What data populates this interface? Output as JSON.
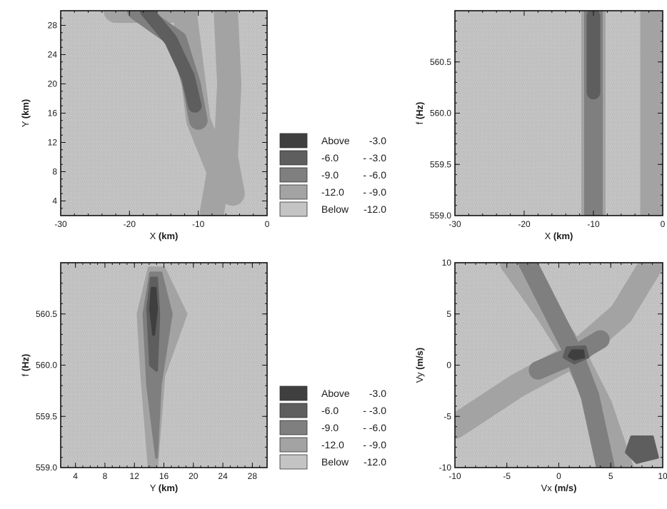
{
  "chart_data": [
    {
      "id": "panel-xy",
      "type": "heatmap",
      "xlabel": "X",
      "xunit": "(km)",
      "ylabel": "Y",
      "yunit": "(km)",
      "xlim": [
        -30,
        0
      ],
      "ylim": [
        2,
        30
      ],
      "xticks": [
        -30,
        -20,
        -10,
        0
      ],
      "xtick_labels": [
        "-30",
        "-20",
        "-10",
        "0"
      ],
      "yticks": [
        4,
        8,
        12,
        16,
        20,
        24,
        28
      ],
      "ytick_labels": [
        "4",
        "8",
        "12",
        "16",
        "20",
        "24",
        "28"
      ],
      "x_minor_step": 2,
      "y_minor_step": 1,
      "features": [
        {
          "kind": "band",
          "level": 3,
          "points": [
            [
              -22,
              30
            ],
            [
              -12,
              30
            ],
            [
              -10,
              15
            ],
            [
              -7,
              8
            ],
            [
              -8,
              2.5
            ]
          ]
        },
        {
          "kind": "band",
          "level": 2,
          "points": [
            [
              -19,
              30
            ],
            [
              -13,
              26
            ],
            [
              -11,
              20
            ],
            [
              -10,
              15
            ]
          ]
        },
        {
          "kind": "band",
          "level": 1,
          "points": [
            [
              -17.5,
              30
            ],
            [
              -14,
              26
            ],
            [
              -11.5,
              21
            ],
            [
              -10.5,
              17
            ]
          ]
        },
        {
          "kind": "band",
          "level": 3,
          "points": [
            [
              -6,
              30
            ],
            [
              -5.5,
              20
            ],
            [
              -6,
              10
            ],
            [
              -5,
              5
            ]
          ]
        }
      ]
    },
    {
      "id": "panel-xf",
      "type": "heatmap",
      "xlabel": "X",
      "xunit": "(km)",
      "ylabel": "f",
      "yunit": "(Hz)",
      "xlim": [
        -30,
        0
      ],
      "ylim": [
        559.0,
        561.0
      ],
      "xticks": [
        -30,
        -20,
        -10,
        0
      ],
      "xtick_labels": [
        "-30",
        "-20",
        "-10",
        "0"
      ],
      "yticks": [
        559.0,
        559.5,
        560.0,
        560.5
      ],
      "ytick_labels": [
        "559.0",
        "559.5",
        "560.0",
        "560.5"
      ],
      "x_minor_step": 2,
      "y_minor_step": 0.1,
      "features": [
        {
          "kind": "band",
          "level": 3,
          "points": [
            [
              -10,
              561
            ],
            [
              -10,
              559
            ]
          ]
        },
        {
          "kind": "band",
          "level": 2,
          "points": [
            [
              -10,
              561
            ],
            [
              -10,
              559
            ]
          ]
        },
        {
          "kind": "band",
          "level": 1,
          "points": [
            [
              -10,
              560.95
            ],
            [
              -10,
              560.2
            ]
          ]
        },
        {
          "kind": "band",
          "level": 3,
          "points": [
            [
              -1.5,
              561
            ],
            [
              -1.5,
              559
            ]
          ]
        }
      ]
    },
    {
      "id": "panel-yf",
      "type": "heatmap",
      "xlabel": "Y",
      "xunit": "(km)",
      "ylabel": "f",
      "yunit": "(Hz)",
      "xlim": [
        2,
        30
      ],
      "ylim": [
        559.0,
        561.0
      ],
      "xticks": [
        4,
        8,
        12,
        16,
        20,
        24,
        28
      ],
      "xtick_labels": [
        "4",
        "8",
        "12",
        "16",
        "20",
        "24",
        "28"
      ],
      "yticks": [
        559.0,
        559.5,
        560.0,
        560.5
      ],
      "ytick_labels": [
        "559.0",
        "559.5",
        "560.0",
        "560.5"
      ],
      "x_minor_step": 1,
      "y_minor_step": 0.1,
      "features": [
        {
          "kind": "blob",
          "level": 3,
          "points": [
            [
              14,
              560.95
            ],
            [
              12.5,
              560.5
            ],
            [
              13,
              559.9
            ],
            [
              14,
              559.0
            ],
            [
              15,
              559.0
            ],
            [
              16,
              559.9
            ],
            [
              19,
              560.5
            ],
            [
              16,
              560.95
            ]
          ]
        },
        {
          "kind": "blob",
          "level": 2,
          "points": [
            [
              14.2,
              560.9
            ],
            [
              13.3,
              560.5
            ],
            [
              13.8,
              559.8
            ],
            [
              15,
              559.1
            ],
            [
              15.5,
              559.8
            ],
            [
              17,
              560.5
            ],
            [
              15.6,
              560.9
            ]
          ]
        },
        {
          "kind": "blob",
          "level": 1,
          "points": [
            [
              14.3,
              560.85
            ],
            [
              13.8,
              560.55
            ],
            [
              14.2,
              560.0
            ],
            [
              15,
              559.95
            ],
            [
              15.3,
              560.5
            ],
            [
              15,
              560.85
            ]
          ]
        },
        {
          "kind": "blob",
          "level": 0,
          "points": [
            [
              14.4,
              560.75
            ],
            [
              14.2,
              560.55
            ],
            [
              14.6,
              560.3
            ],
            [
              15.0,
              560.55
            ],
            [
              14.8,
              560.75
            ]
          ]
        }
      ]
    },
    {
      "id": "panel-vxvy",
      "type": "heatmap",
      "xlabel": "Vx",
      "xunit": "(m/s)",
      "ylabel": "Vy",
      "yunit": "(m/s)",
      "xlim": [
        -10,
        10
      ],
      "ylim": [
        -10,
        10
      ],
      "xticks": [
        -10,
        -5,
        0,
        5,
        10
      ],
      "xtick_labels": [
        "-10",
        "-5",
        "0",
        "5",
        "10"
      ],
      "yticks": [
        -10,
        -5,
        0,
        5,
        10
      ],
      "ytick_labels": [
        "-10",
        "-5",
        "0",
        "5",
        "10"
      ],
      "x_minor_step": 1,
      "y_minor_step": 1,
      "features": [
        {
          "kind": "band",
          "level": 3,
          "points": [
            [
              -4.5,
              10
            ],
            [
              -1,
              5
            ],
            [
              1.5,
              1
            ],
            [
              4,
              -4
            ],
            [
              6,
              -10
            ]
          ]
        },
        {
          "kind": "band",
          "level": 3,
          "points": [
            [
              -10,
              -6
            ],
            [
              -4,
              -2
            ],
            [
              1.5,
              1
            ],
            [
              6,
              5
            ],
            [
              9,
              10
            ]
          ]
        },
        {
          "kind": "band",
          "level": 2,
          "points": [
            [
              -3,
              10
            ],
            [
              0,
              4
            ],
            [
              1.5,
              1
            ],
            [
              3,
              -3
            ],
            [
              4.5,
              -10
            ]
          ]
        },
        {
          "kind": "band",
          "level": 2,
          "points": [
            [
              -2,
              -0.5
            ],
            [
              1.5,
              1
            ],
            [
              4,
              2.5
            ]
          ]
        },
        {
          "kind": "blob",
          "level": 1,
          "points": [
            [
              0.8,
              1.7
            ],
            [
              2.5,
              1.8
            ],
            [
              2.8,
              0.8
            ],
            [
              1.5,
              0.2
            ],
            [
              0.5,
              0.8
            ]
          ]
        },
        {
          "kind": "blob",
          "level": 0,
          "points": [
            [
              1.3,
              1.4
            ],
            [
              2.3,
              1.4
            ],
            [
              2.4,
              0.8
            ],
            [
              1.5,
              0.6
            ],
            [
              1.0,
              0.9
            ]
          ]
        },
        {
          "kind": "blob",
          "level": 1,
          "points": [
            [
              7,
              -7
            ],
            [
              9,
              -7
            ],
            [
              9.5,
              -9
            ],
            [
              7.5,
              -9.5
            ],
            [
              6.5,
              -8.5
            ]
          ]
        }
      ]
    }
  ],
  "legends": [
    {
      "id": "legend-top",
      "entries": [
        {
          "name": "Above",
          "range": "-3.0"
        },
        {
          "name": "-6.0",
          "range": "-  -3.0"
        },
        {
          "name": "-9.0",
          "range": "-  -6.0"
        },
        {
          "name": "-12.0",
          "range": "-  -9.0"
        },
        {
          "name": "Below",
          "range": "-12.0"
        }
      ]
    },
    {
      "id": "legend-bottom",
      "entries": [
        {
          "name": "Above",
          "range": "-3.0"
        },
        {
          "name": "-6.0",
          "range": "-  -3.0"
        },
        {
          "name": "-9.0",
          "range": "-  -6.0"
        },
        {
          "name": "-12.0",
          "range": "-  -9.0"
        },
        {
          "name": "Below",
          "range": "-12.0"
        }
      ]
    }
  ],
  "colors": {
    "levels": [
      "#3f3f3f",
      "#5e5e5e",
      "#7f7f7f",
      "#a3a3a3",
      "#c4c4c4"
    ],
    "frame": "#111111"
  }
}
